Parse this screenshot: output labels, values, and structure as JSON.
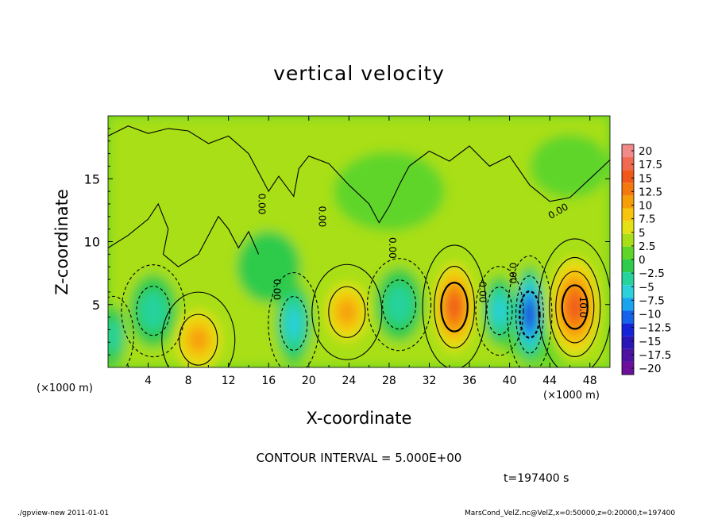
{
  "figure": {
    "footer_left": "./gpview-new   2011-01-01",
    "footer_right": "MarsCond_VelZ.nc@VelZ,x=0:50000,z=0:20000,t=197400",
    "contour_interval": "CONTOUR INTERVAL = 5.000E+00",
    "time": "t=197400 s",
    "x_unit_left": "(×1000 m)",
    "x_unit_right": "(×1000 m)"
  },
  "chart_data": {
    "type": "heatmap",
    "title": "vertical velocity",
    "xlabel": "X-coordinate",
    "ylabel": "Z-coordinate",
    "xlim": [
      0,
      50
    ],
    "ylim": [
      0,
      20
    ],
    "x_ticks": [
      4,
      8,
      12,
      16,
      20,
      24,
      28,
      32,
      36,
      40,
      44,
      48
    ],
    "y_ticks": [
      5,
      10,
      15
    ],
    "colorbar": {
      "ticks": [
        "20",
        "17.5",
        "15",
        "12.5",
        "10",
        "7.5",
        "5",
        "2.5",
        "0",
        "-2.5",
        "-5",
        "-7.5",
        "-10",
        "-12.5",
        "-15",
        "-17.5",
        "-20"
      ],
      "colors": [
        "#f28a8a",
        "#ef6a50",
        "#f0581a",
        "#f5780e",
        "#f59e08",
        "#f7c60c",
        "#e4e214",
        "#a8df18",
        "#5fd52a",
        "#2ecb4c",
        "#27d39c",
        "#2cd1d9",
        "#1aa3ef",
        "#1563ea",
        "#1423d8",
        "#2a15b8",
        "#4d12a0",
        "#6c0f9a"
      ]
    },
    "contour_labels": [
      "0.00",
      "0.00",
      "0.00",
      "0.00",
      "0.00",
      "0.00",
      "0.00",
      "10.0"
    ],
    "features": [
      {
        "x": 9,
        "z": 2.2,
        "value": 8
      },
      {
        "x": 23.8,
        "z": 4.4,
        "value": 9
      },
      {
        "x": 34.5,
        "z": 4.8,
        "value": 14
      },
      {
        "x": 46.5,
        "z": 4.8,
        "value": 15
      },
      {
        "x": 42,
        "z": 4.2,
        "value": -14
      },
      {
        "x": 18.5,
        "z": 3.5,
        "value": -7
      },
      {
        "x": 4.5,
        "z": 4.5,
        "value": -5
      },
      {
        "x": 29,
        "z": 5,
        "value": -5
      },
      {
        "x": 39,
        "z": 4.5,
        "value": -6
      },
      {
        "x": 0.5,
        "z": 2.5,
        "value": -3
      }
    ]
  }
}
